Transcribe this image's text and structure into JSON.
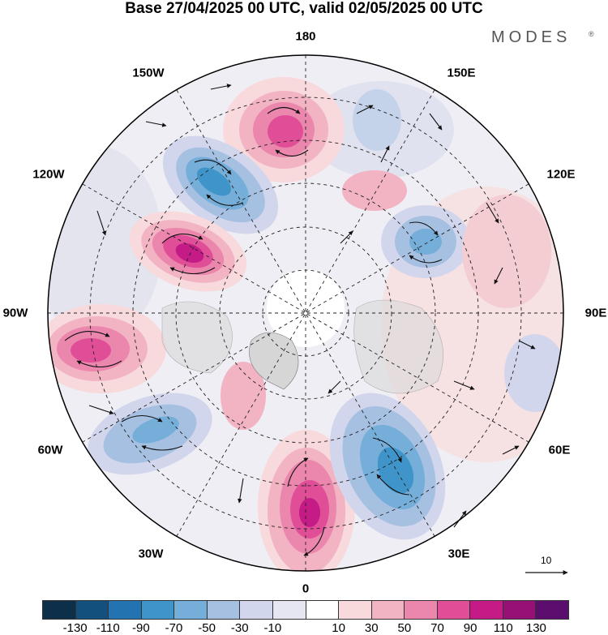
{
  "header": {
    "title": "Base 27/04/2025 00 UTC, valid 02/05/2025 00 UTC",
    "brand": "MODES",
    "brand_mark": "®"
  },
  "longitude_labels": {
    "lon_180": "180",
    "lon_150E": "150E",
    "lon_120E": "120E",
    "lon_90E": "90E",
    "lon_60E": "60E",
    "lon_30E": "30E",
    "lon_0": "0",
    "lon_30W": "30W",
    "lon_60W": "60W",
    "lon_90W": "90W",
    "lon_120W": "120W",
    "lon_150W": "150W"
  },
  "reference_vector": {
    "label": "10"
  },
  "colors": {
    "neg_130": "#10344f",
    "neg_110": "#165f8f",
    "neg_90": "#2c86bd",
    "neg_70": "#5ba4d2",
    "neg_50": "#95bde0",
    "neg_30": "#c5d3ea",
    "neg_10": "#e2e3f1",
    "zero": "#ffffff",
    "pos_10": "#f8d9dc",
    "pos_30": "#f2b3c3",
    "pos_50": "#eb86ad",
    "pos_70": "#e04e98",
    "pos_90": "#c41b86",
    "pos_110": "#961176",
    "pos_130": "#5c0e6e",
    "land": "#d9d9d9",
    "neutral": "#ededed"
  },
  "colorbar": {
    "ticks": [
      "-130",
      "-110",
      "-90",
      "-70",
      "-50",
      "-30",
      "-10",
      "10",
      "30",
      "50",
      "70",
      "90",
      "110",
      "130"
    ],
    "colors": [
      "#0e2f49",
      "#14507e",
      "#2273b0",
      "#3f95c9",
      "#75aed9",
      "#a6c0e2",
      "#d2d6ec",
      "#e6e6f2",
      "#ffffff",
      "#f8d9dc",
      "#f2b3c3",
      "#eb86ad",
      "#e04e98",
      "#c41b86",
      "#961176",
      "#5c0e6e"
    ]
  }
}
